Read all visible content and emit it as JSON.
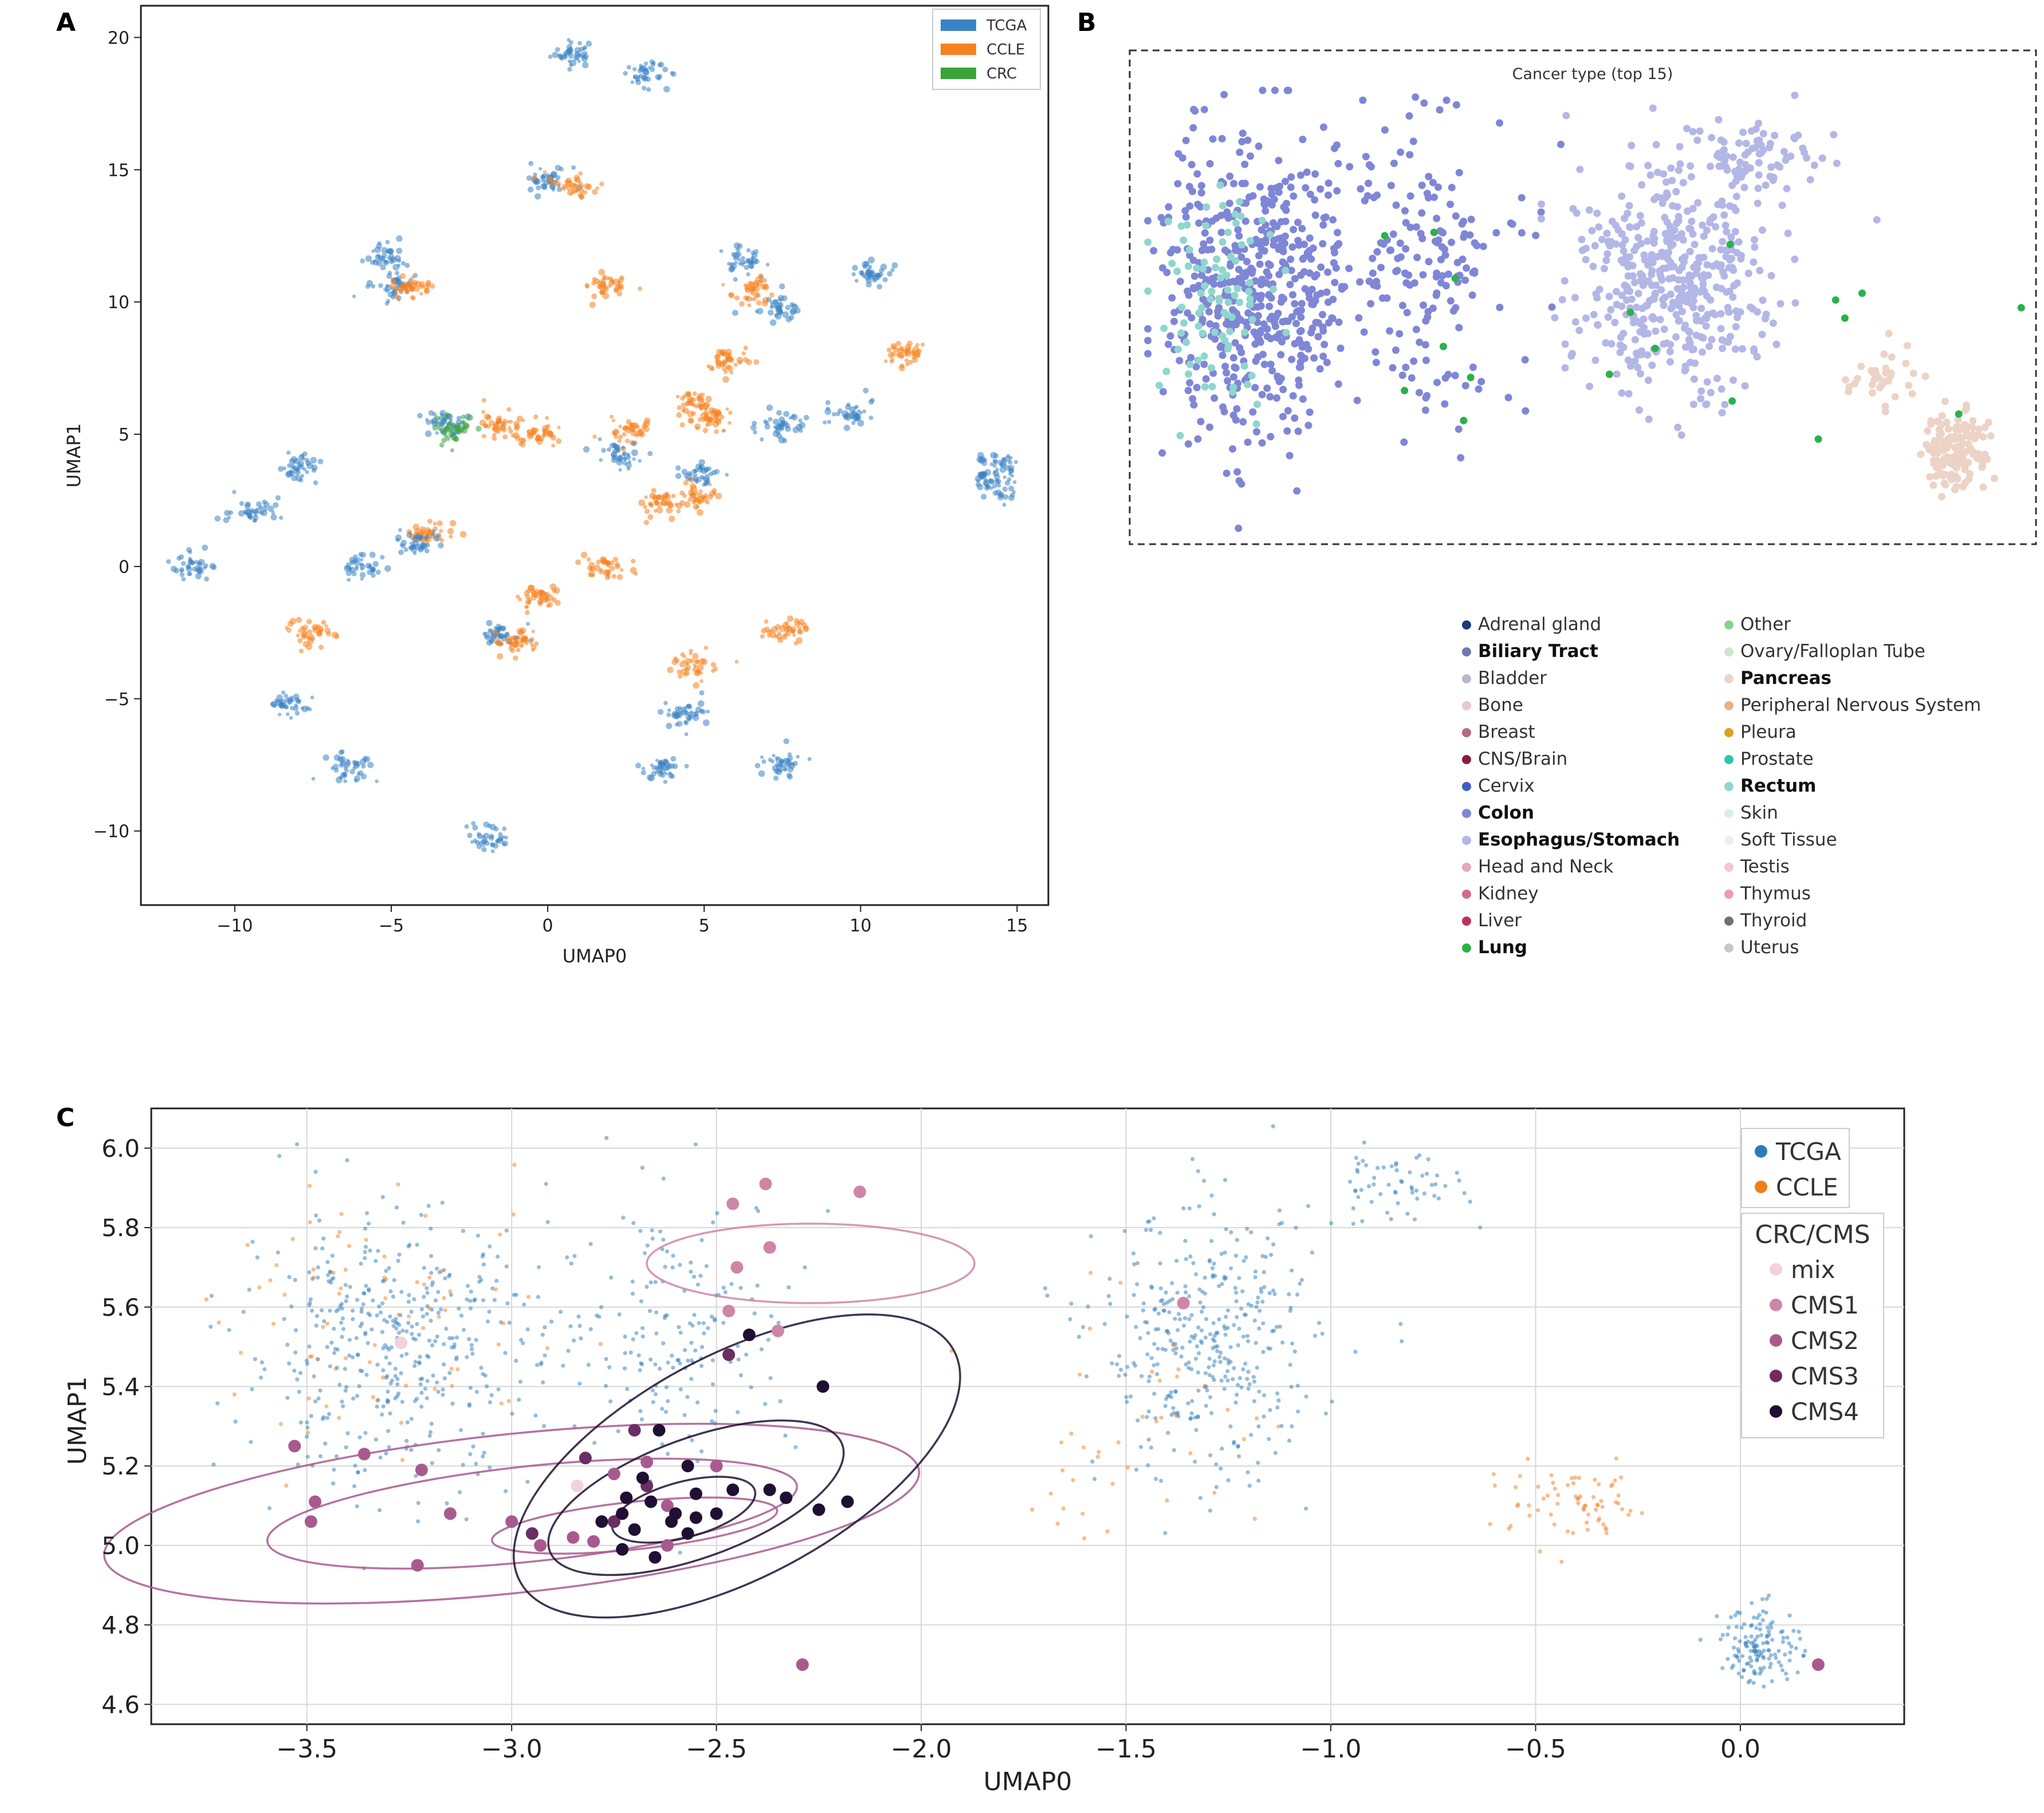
{
  "panels": {
    "a": "A",
    "b": "B",
    "c": "C"
  },
  "chart_data": [
    {
      "type": "scatter",
      "panel": "A",
      "xlabel": "UMAP0",
      "ylabel": "UMAP1",
      "xlim": [
        -13,
        16
      ],
      "ylim": [
        -12.8,
        21.2
      ],
      "xticks": [
        -10,
        -5,
        0,
        5,
        10,
        15
      ],
      "xtick_labels": [
        "−10",
        "−5",
        "0",
        "5",
        "10",
        "15"
      ],
      "yticks": [
        -10,
        -5,
        0,
        5,
        10,
        15,
        20
      ],
      "ytick_labels": [
        "−10",
        "−5",
        "0",
        "5",
        "10",
        "15",
        "20"
      ],
      "legend": [
        {
          "label": "TCGA",
          "color": "#3b84c4"
        },
        {
          "label": "CCLE",
          "color": "#f5821f"
        },
        {
          "label": "CRC",
          "color": "#3aa33a"
        }
      ],
      "legend_position": "top-right",
      "clusters": [
        {
          "x": 0.8,
          "y": 19.4,
          "series": "TCGA"
        },
        {
          "x": 3.1,
          "y": 18.6,
          "series": "TCGA"
        },
        {
          "x": 0.0,
          "y": 14.6,
          "series": "TCGA"
        },
        {
          "x": 0.8,
          "y": 14.4,
          "series": "CCLE"
        },
        {
          "x": -5.1,
          "y": 11.7,
          "series": "TCGA"
        },
        {
          "x": -5.0,
          "y": 10.6,
          "series": "TCGA"
        },
        {
          "x": -4.5,
          "y": 10.5,
          "series": "CCLE"
        },
        {
          "x": 1.8,
          "y": 10.6,
          "series": "CCLE"
        },
        {
          "x": 6.2,
          "y": 11.6,
          "series": "TCGA"
        },
        {
          "x": 6.6,
          "y": 10.4,
          "series": "CCLE"
        },
        {
          "x": 7.4,
          "y": 9.8,
          "series": "TCGA"
        },
        {
          "x": 10.2,
          "y": 11.1,
          "series": "TCGA"
        },
        {
          "x": 11.4,
          "y": 8.0,
          "series": "CCLE"
        },
        {
          "x": 5.7,
          "y": 7.8,
          "series": "CCLE"
        },
        {
          "x": 4.7,
          "y": 6.2,
          "series": "CCLE"
        },
        {
          "x": 5.2,
          "y": 5.6,
          "series": "CCLE"
        },
        {
          "x": -3.3,
          "y": 5.4,
          "series": "TCGA"
        },
        {
          "x": -3.0,
          "y": 5.2,
          "series": "CRC"
        },
        {
          "x": -1.5,
          "y": 5.4,
          "series": "CCLE"
        },
        {
          "x": -0.4,
          "y": 5.0,
          "series": "CCLE"
        },
        {
          "x": 2.6,
          "y": 5.1,
          "series": "CCLE"
        },
        {
          "x": 2.4,
          "y": 4.2,
          "series": "TCGA"
        },
        {
          "x": 3.6,
          "y": 2.4,
          "series": "CCLE"
        },
        {
          "x": 4.8,
          "y": 2.6,
          "series": "CCLE"
        },
        {
          "x": 5.0,
          "y": 3.5,
          "series": "TCGA"
        },
        {
          "x": 7.5,
          "y": 5.4,
          "series": "TCGA"
        },
        {
          "x": 9.7,
          "y": 5.8,
          "series": "TCGA"
        },
        {
          "x": 14.3,
          "y": 3.8,
          "series": "TCGA"
        },
        {
          "x": 14.4,
          "y": 3.0,
          "series": "TCGA"
        },
        {
          "x": -8.0,
          "y": 3.7,
          "series": "TCGA"
        },
        {
          "x": -9.5,
          "y": 2.1,
          "series": "TCGA"
        },
        {
          "x": -3.8,
          "y": 1.2,
          "series": "CCLE"
        },
        {
          "x": -4.2,
          "y": 0.9,
          "series": "TCGA"
        },
        {
          "x": -5.8,
          "y": 0.0,
          "series": "TCGA"
        },
        {
          "x": -11.3,
          "y": 0.0,
          "series": "TCGA"
        },
        {
          "x": 1.9,
          "y": -0.1,
          "series": "CCLE"
        },
        {
          "x": -0.3,
          "y": -1.2,
          "series": "CCLE"
        },
        {
          "x": -1.5,
          "y": -2.6,
          "series": "TCGA"
        },
        {
          "x": -1.0,
          "y": -2.8,
          "series": "CCLE"
        },
        {
          "x": -7.6,
          "y": -2.5,
          "series": "CCLE"
        },
        {
          "x": 7.6,
          "y": -2.4,
          "series": "CCLE"
        },
        {
          "x": 4.7,
          "y": -3.8,
          "series": "CCLE"
        },
        {
          "x": -8.4,
          "y": -5.2,
          "series": "TCGA"
        },
        {
          "x": 4.5,
          "y": -5.6,
          "series": "TCGA"
        },
        {
          "x": 3.7,
          "y": -7.6,
          "series": "TCGA"
        },
        {
          "x": 7.5,
          "y": -7.5,
          "series": "TCGA"
        },
        {
          "x": -6.3,
          "y": -7.6,
          "series": "TCGA"
        },
        {
          "x": -1.9,
          "y": -10.3,
          "series": "TCGA"
        }
      ]
    },
    {
      "type": "scatter",
      "panel": "B",
      "title": "Cancer type (top 15)",
      "legend": [
        {
          "label": "Adrenal gland",
          "color": "#1f3a7a",
          "bold": false
        },
        {
          "label": "Biliary Tract",
          "color": "#7078b4",
          "bold": true
        },
        {
          "label": "Bladder",
          "color": "#b8b8c8",
          "bold": false
        },
        {
          "label": "Bone",
          "color": "#e6c8d2",
          "bold": false
        },
        {
          "label": "Breast",
          "color": "#b46a84",
          "bold": false
        },
        {
          "label": "CNS/Brain",
          "color": "#8c1c3a",
          "bold": false
        },
        {
          "label": "Cervix",
          "color": "#3f5fbf",
          "bold": false
        },
        {
          "label": "Colon",
          "color": "#7f86d6",
          "bold": true
        },
        {
          "label": "Esophagus/Stomach",
          "color": "#b3b7e6",
          "bold": true
        },
        {
          "label": "Head and Neck",
          "color": "#e3a8bd",
          "bold": false
        },
        {
          "label": "Kidney",
          "color": "#d06a8e",
          "bold": false
        },
        {
          "label": "Liver",
          "color": "#c0305a",
          "bold": false
        },
        {
          "label": "Lung",
          "color": "#2ab24a",
          "bold": true
        },
        {
          "label": "Other",
          "color": "#8fcf8f",
          "bold": false
        },
        {
          "label": "Ovary/Falloplan Tube",
          "color": "#cde5cd",
          "bold": false
        },
        {
          "label": "Pancreas",
          "color": "#ecd3c6",
          "bold": true
        },
        {
          "label": "Peripheral Nervous System",
          "color": "#e8b08a",
          "bold": false
        },
        {
          "label": "Pleura",
          "color": "#e0a020",
          "bold": false
        },
        {
          "label": "Prostate",
          "color": "#2fc4b0",
          "bold": false
        },
        {
          "label": "Rectum",
          "color": "#8fd6cc",
          "bold": true
        },
        {
          "label": "Skin",
          "color": "#d8efe8",
          "bold": false
        },
        {
          "label": "Soft Tissue",
          "color": "#eeeeee",
          "bold": false
        },
        {
          "label": "Testis",
          "color": "#f3c6d6",
          "bold": false
        },
        {
          "label": "Thymus",
          "color": "#ee9ab8",
          "bold": false
        },
        {
          "label": "Thyroid",
          "color": "#707070",
          "bold": false
        },
        {
          "label": "Uterus",
          "color": "#c8c8c8",
          "bold": false
        }
      ],
      "groups": [
        {
          "name": "Colon",
          "cx": 0.13,
          "cy": 0.45,
          "sx": 0.09,
          "sy": 0.28,
          "n": 520
        },
        {
          "name": "Rectum",
          "cx": 0.08,
          "cy": 0.5,
          "sx": 0.06,
          "sy": 0.22,
          "n": 90
        },
        {
          "name": "Colon",
          "cx": 0.32,
          "cy": 0.4,
          "sx": 0.08,
          "sy": 0.26,
          "n": 170
        },
        {
          "name": "Esophagus/Stomach",
          "cx": 0.6,
          "cy": 0.42,
          "sx": 0.09,
          "sy": 0.22,
          "n": 470
        },
        {
          "name": "Esophagus/Stomach",
          "cx": 0.7,
          "cy": 0.16,
          "sx": 0.06,
          "sy": 0.06,
          "n": 70
        },
        {
          "name": "Pancreas",
          "cx": 0.92,
          "cy": 0.82,
          "sx": 0.03,
          "sy": 0.07,
          "n": 150
        },
        {
          "name": "Pancreas",
          "cx": 0.84,
          "cy": 0.66,
          "sx": 0.04,
          "sy": 0.06,
          "n": 35
        },
        {
          "name": "Lung",
          "cx": 0.6,
          "cy": 0.5,
          "sx": 0.35,
          "sy": 0.25,
          "n": 18
        }
      ]
    },
    {
      "type": "scatter",
      "panel": "C",
      "xlabel": "UMAP0",
      "ylabel": "UMAP1",
      "xlim": [
        -3.88,
        0.4
      ],
      "ylim": [
        4.55,
        6.1
      ],
      "xticks": [
        -3.5,
        -3.0,
        -2.5,
        -2.0,
        -1.5,
        -1.0,
        -0.5,
        0.0
      ],
      "xtick_labels": [
        "−3.5",
        "−3.0",
        "−2.5",
        "−2.0",
        "−1.5",
        "−1.0",
        "−0.5",
        "0.0"
      ],
      "yticks": [
        4.6,
        4.8,
        5.0,
        5.2,
        5.4,
        5.6,
        5.8,
        6.0
      ],
      "ytick_labels": [
        "4.6",
        "4.8",
        "5.0",
        "5.2",
        "5.4",
        "5.6",
        "5.8",
        "6.0"
      ],
      "grid": true,
      "legend_source": [
        {
          "label": "TCGA",
          "color": "#2b7bba"
        },
        {
          "label": "CCLE",
          "color": "#f07e1a"
        }
      ],
      "legend_cms_title": "CRC/CMS",
      "legend_cms": [
        {
          "label": "mix",
          "color": "#f2d2dc"
        },
        {
          "label": "CMS1",
          "color": "#cf86a6"
        },
        {
          "label": "CMS2",
          "color": "#a85a8e"
        },
        {
          "label": "CMS3",
          "color": "#6b2e62"
        },
        {
          "label": "CMS4",
          "color": "#1f0f33"
        }
      ],
      "legend_position": "top-right",
      "cms_points": [
        {
          "x": -2.46,
          "y": 5.86,
          "cls": "CMS1"
        },
        {
          "x": -2.38,
          "y": 5.91,
          "cls": "CMS1"
        },
        {
          "x": -2.15,
          "y": 5.89,
          "cls": "CMS1"
        },
        {
          "x": -2.45,
          "y": 5.7,
          "cls": "CMS1"
        },
        {
          "x": -2.37,
          "y": 5.75,
          "cls": "CMS1"
        },
        {
          "x": -2.47,
          "y": 5.59,
          "cls": "CMS1"
        },
        {
          "x": -2.35,
          "y": 5.54,
          "cls": "CMS1"
        },
        {
          "x": -1.36,
          "y": 5.61,
          "cls": "CMS1"
        },
        {
          "x": -3.27,
          "y": 5.51,
          "cls": "mix"
        },
        {
          "x": -2.84,
          "y": 5.15,
          "cls": "mix"
        },
        {
          "x": -3.53,
          "y": 5.25,
          "cls": "CMS2"
        },
        {
          "x": -3.36,
          "y": 5.23,
          "cls": "CMS2"
        },
        {
          "x": -3.48,
          "y": 5.11,
          "cls": "CMS2"
        },
        {
          "x": -3.22,
          "y": 5.19,
          "cls": "CMS2"
        },
        {
          "x": -3.15,
          "y": 5.08,
          "cls": "CMS2"
        },
        {
          "x": -3.49,
          "y": 5.06,
          "cls": "CMS2"
        },
        {
          "x": -3.23,
          "y": 4.95,
          "cls": "CMS2"
        },
        {
          "x": -3.0,
          "y": 5.06,
          "cls": "CMS2"
        },
        {
          "x": -2.93,
          "y": 5.0,
          "cls": "CMS2"
        },
        {
          "x": -2.85,
          "y": 5.02,
          "cls": "CMS2"
        },
        {
          "x": -2.8,
          "y": 5.01,
          "cls": "CMS2"
        },
        {
          "x": -2.75,
          "y": 5.18,
          "cls": "CMS2"
        },
        {
          "x": -2.67,
          "y": 5.21,
          "cls": "CMS2"
        },
        {
          "x": -2.62,
          "y": 5.1,
          "cls": "CMS2"
        },
        {
          "x": -2.5,
          "y": 5.2,
          "cls": "CMS2"
        },
        {
          "x": -2.62,
          "y": 5.0,
          "cls": "CMS2"
        },
        {
          "x": -2.29,
          "y": 4.7,
          "cls": "CMS2"
        },
        {
          "x": 0.19,
          "y": 4.7,
          "cls": "CMS2"
        },
        {
          "x": -2.47,
          "y": 5.48,
          "cls": "CMS3"
        },
        {
          "x": -2.82,
          "y": 5.22,
          "cls": "CMS3"
        },
        {
          "x": -2.67,
          "y": 5.15,
          "cls": "CMS3"
        },
        {
          "x": -2.75,
          "y": 5.06,
          "cls": "CMS3"
        },
        {
          "x": -2.95,
          "y": 5.03,
          "cls": "CMS3"
        },
        {
          "x": -2.7,
          "y": 5.29,
          "cls": "CMS3"
        },
        {
          "x": -2.42,
          "y": 5.53,
          "cls": "CMS4"
        },
        {
          "x": -2.24,
          "y": 5.4,
          "cls": "CMS4"
        },
        {
          "x": -2.64,
          "y": 5.29,
          "cls": "CMS4"
        },
        {
          "x": -2.57,
          "y": 5.2,
          "cls": "CMS4"
        },
        {
          "x": -2.68,
          "y": 5.17,
          "cls": "CMS4"
        },
        {
          "x": -2.72,
          "y": 5.12,
          "cls": "CMS4"
        },
        {
          "x": -2.66,
          "y": 5.11,
          "cls": "CMS4"
        },
        {
          "x": -2.55,
          "y": 5.13,
          "cls": "CMS4"
        },
        {
          "x": -2.6,
          "y": 5.08,
          "cls": "CMS4"
        },
        {
          "x": -2.73,
          "y": 5.08,
          "cls": "CMS4"
        },
        {
          "x": -2.78,
          "y": 5.06,
          "cls": "CMS4"
        },
        {
          "x": -2.7,
          "y": 5.04,
          "cls": "CMS4"
        },
        {
          "x": -2.61,
          "y": 5.06,
          "cls": "CMS4"
        },
        {
          "x": -2.55,
          "y": 5.07,
          "cls": "CMS4"
        },
        {
          "x": -2.5,
          "y": 5.08,
          "cls": "CMS4"
        },
        {
          "x": -2.46,
          "y": 5.14,
          "cls": "CMS4"
        },
        {
          "x": -2.37,
          "y": 5.14,
          "cls": "CMS4"
        },
        {
          "x": -2.33,
          "y": 5.12,
          "cls": "CMS4"
        },
        {
          "x": -2.25,
          "y": 5.09,
          "cls": "CMS4"
        },
        {
          "x": -2.18,
          "y": 5.11,
          "cls": "CMS4"
        },
        {
          "x": -2.65,
          "y": 4.97,
          "cls": "CMS4"
        },
        {
          "x": -2.73,
          "y": 4.99,
          "cls": "CMS4"
        },
        {
          "x": -2.57,
          "y": 5.03,
          "cls": "CMS4"
        }
      ],
      "background_regions": [
        {
          "series": "TCGA",
          "cx": -3.3,
          "cy": 5.5,
          "sx": 0.3,
          "sy": 0.28,
          "n": 420
        },
        {
          "series": "TCGA",
          "cx": -2.6,
          "cy": 5.55,
          "sx": 0.25,
          "sy": 0.28,
          "n": 180
        },
        {
          "series": "TCGA",
          "cx": -1.3,
          "cy": 5.5,
          "sx": 0.22,
          "sy": 0.28,
          "n": 380
        },
        {
          "series": "TCGA",
          "cx": -0.85,
          "cy": 5.9,
          "sx": 0.15,
          "sy": 0.08,
          "n": 60
        },
        {
          "series": "TCGA",
          "cx": 0.05,
          "cy": 4.75,
          "sx": 0.08,
          "sy": 0.08,
          "n": 140
        },
        {
          "series": "CCLE",
          "cx": -3.3,
          "cy": 5.55,
          "sx": 0.35,
          "sy": 0.28,
          "n": 80
        },
        {
          "series": "CCLE",
          "cx": -0.4,
          "cy": 5.1,
          "sx": 0.18,
          "sy": 0.08,
          "n": 70
        },
        {
          "series": "CCLE",
          "cx": -1.5,
          "cy": 5.3,
          "sx": 0.3,
          "sy": 0.25,
          "n": 40
        }
      ],
      "contours": [
        {
          "cls": "CMS1",
          "cx": -2.27,
          "cy": 5.71,
          "rx": 0.4,
          "ry": 0.1,
          "rot": 0
        },
        {
          "cls": "CMS2",
          "cx": -3.0,
          "cy": 5.08,
          "rx": 1.0,
          "ry": 0.2,
          "rot": -6
        },
        {
          "cls": "CMS2",
          "cx": -2.95,
          "cy": 5.08,
          "rx": 0.65,
          "ry": 0.12,
          "rot": -6
        },
        {
          "cls": "CMS2",
          "cx": -2.7,
          "cy": 5.05,
          "rx": 0.35,
          "ry": 0.06,
          "rot": -6
        },
        {
          "cls": "CMS4",
          "cx": -2.45,
          "cy": 5.2,
          "rx": 0.6,
          "ry": 0.28,
          "rot": -28
        },
        {
          "cls": "CMS4",
          "cx": -2.55,
          "cy": 5.12,
          "rx": 0.38,
          "ry": 0.15,
          "rot": -20
        },
        {
          "cls": "CMS4",
          "cx": -2.58,
          "cy": 5.09,
          "rx": 0.18,
          "ry": 0.07,
          "rot": -15
        }
      ]
    }
  ]
}
